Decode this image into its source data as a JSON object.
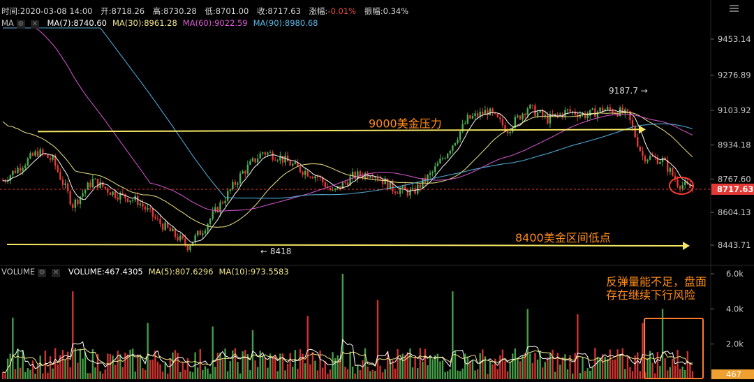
{
  "header": {
    "time_label": "时间:2020-03-08 14:00",
    "open_label": "开:8718.26",
    "high_label": "高:8730.28",
    "low_label": "低:8701.00",
    "close_label": "收:8717.63",
    "change_prefix": "涨幅:",
    "change_value": "-0.01%",
    "amplitude_label": "振幅:0.34%"
  },
  "ma_legend": {
    "name": "MA",
    "items": [
      {
        "label": "MA(7):8740.60",
        "color": "#ffffff"
      },
      {
        "label": "MA(30):8961.28",
        "color": "#f3e88a"
      },
      {
        "label": "MA(60):9022.59",
        "color": "#e05ad8"
      },
      {
        "label": "MA(90):8980.68",
        "color": "#5ab8e8"
      }
    ]
  },
  "volume_legend": {
    "name": "VOLUME",
    "items": [
      {
        "label": "VOLUME:467.4305",
        "color": "#ffffff"
      },
      {
        "label": "MA(5):807.6296",
        "color": "#f3e88a"
      },
      {
        "label": "MA(10):973.5583",
        "color": "#f3e88a"
      }
    ]
  },
  "annotations": {
    "resistance_label": "9000美金压力",
    "support_label": "8400美金区间低点",
    "high_marker": "9187.7 →",
    "low_marker": "← 8418",
    "volume_note_line1": "反弹量能不足，盘面",
    "volume_note_line2": "存在继续下行风险"
  },
  "colors": {
    "up": "#4caf50",
    "down": "#e53935",
    "annotation_yellow": "#f5e663",
    "annotation_text": "#ff8c1a",
    "highlight_circle": "#ff3b30",
    "highlight_box": "#ff7a30",
    "current_price_bg": "#e53935",
    "volume_tag_bg": "#f0a030"
  },
  "chart_data": {
    "type": "candlestick",
    "price_axis_ticks": [
      "9453.14",
      "9276.89",
      "9103.92",
      "8934.18",
      "8767.60",
      "8604.13",
      "8443.71"
    ],
    "price_tick_values": [
      9453.14,
      9276.89,
      9103.92,
      8934.18,
      8767.6,
      8604.13,
      8443.71
    ],
    "current_price": "8717.63",
    "current_price_value": 8717.63,
    "volume_axis_ticks": [
      "6.0k",
      "4.0k",
      "2.0k"
    ],
    "volume_tick_values": [
      6000,
      4000,
      2000
    ],
    "current_volume_tag": "467",
    "current_volume_value": 467.4305,
    "resistance_level": 9000,
    "support_level": 8400,
    "period_high": 9187.7,
    "period_low": 8418,
    "price_path_keypoints": [
      [
        0,
        8760
      ],
      [
        6,
        8820
      ],
      [
        14,
        8900
      ],
      [
        20,
        8860
      ],
      [
        28,
        8640
      ],
      [
        36,
        8760
      ],
      [
        44,
        8700
      ],
      [
        54,
        8660
      ],
      [
        62,
        8560
      ],
      [
        70,
        8480
      ],
      [
        74,
        8440
      ],
      [
        80,
        8520
      ],
      [
        88,
        8660
      ],
      [
        96,
        8800
      ],
      [
        104,
        8900
      ],
      [
        110,
        8880
      ],
      [
        118,
        8820
      ],
      [
        126,
        8780
      ],
      [
        132,
        8700
      ],
      [
        140,
        8780
      ],
      [
        148,
        8800
      ],
      [
        156,
        8720
      ],
      [
        164,
        8700
      ],
      [
        172,
        8800
      ],
      [
        180,
        8940
      ],
      [
        186,
        9060
      ],
      [
        194,
        9100
      ],
      [
        202,
        9010
      ],
      [
        210,
        9120
      ],
      [
        218,
        9060
      ],
      [
        226,
        9100
      ],
      [
        234,
        9080
      ],
      [
        240,
        9110
      ],
      [
        246,
        9100
      ],
      [
        250,
        9080
      ],
      [
        256,
        8880
      ],
      [
        264,
        8860
      ],
      [
        270,
        8750
      ],
      [
        276,
        8717.63
      ]
    ],
    "volume_spikes": [
      {
        "index": 4,
        "value": 3500
      },
      {
        "index": 28,
        "value": 5000
      },
      {
        "index": 58,
        "value": 3200
      },
      {
        "index": 84,
        "value": 3000
      },
      {
        "index": 100,
        "value": 2800
      },
      {
        "index": 122,
        "value": 3600
      },
      {
        "index": 136,
        "value": 6000
      },
      {
        "index": 150,
        "value": 4500
      },
      {
        "index": 180,
        "value": 5000
      },
      {
        "index": 210,
        "value": 4000
      },
      {
        "index": 230,
        "value": 3700
      },
      {
        "index": 256,
        "value": 3200
      },
      {
        "index": 264,
        "value": 4000
      }
    ]
  }
}
